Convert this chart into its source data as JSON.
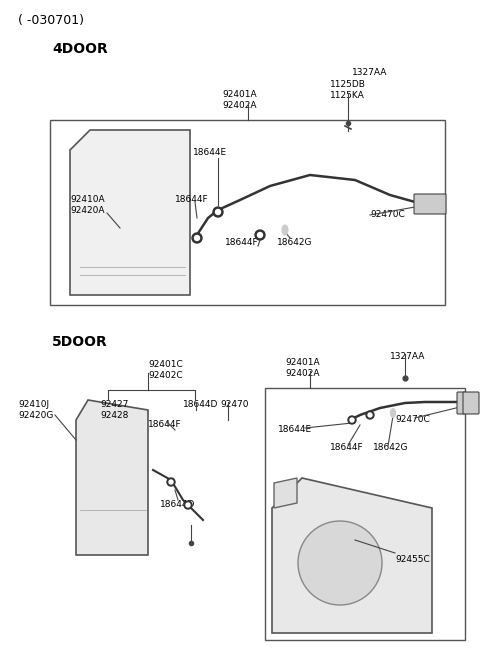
{
  "bg": "#ffffff",
  "title": "( -030701)",
  "sec1": "4DOOR",
  "sec2": "5DOOR",
  "fs_title": 9,
  "fs_sec": 10,
  "fs_lbl": 6.5
}
